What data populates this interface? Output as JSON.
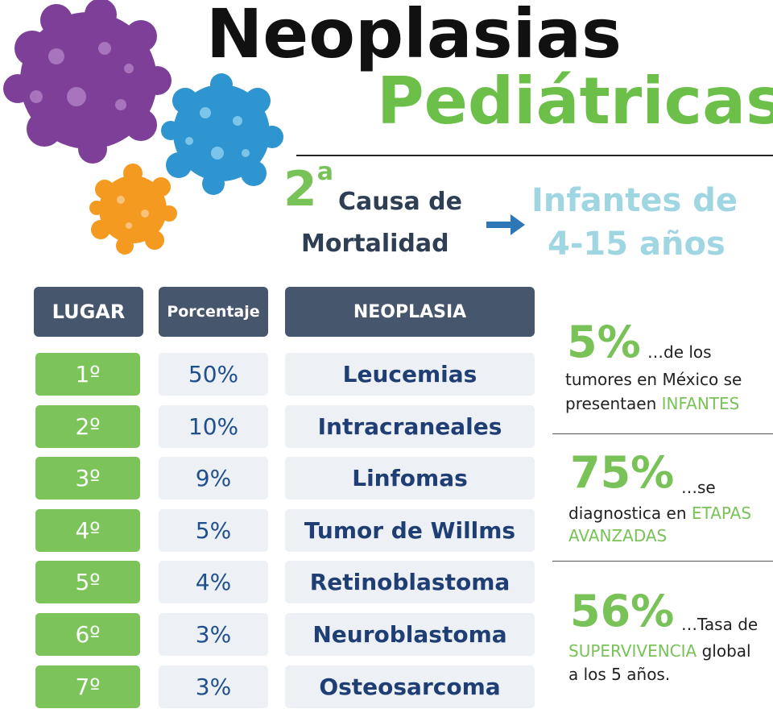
{
  "title": {
    "line1": "Neoplasias",
    "line2": "Pediátricas"
  },
  "cause": {
    "ordinal_num": "2",
    "ordinal_sup": "a",
    "line1": "Causa de",
    "line2": "Mortalidad",
    "target_line1": "Infantes de",
    "target_line2": "4-15 años"
  },
  "colors": {
    "green": "#78c257",
    "navy": "#46566c",
    "light_blue": "#9fd6e2"
  },
  "table": {
    "headers": [
      "LUGAR",
      "Porcentaje",
      "NEOPLASIA"
    ],
    "rows": [
      {
        "lugar": "1º",
        "pct": "50%",
        "neo": "Leucemias"
      },
      {
        "lugar": "2º",
        "pct": "10%",
        "neo": "Intracraneales"
      },
      {
        "lugar": "3º",
        "pct": "9%",
        "neo": "Linfomas"
      },
      {
        "lugar": "4º",
        "pct": "5%",
        "neo": "Tumor de Willms"
      },
      {
        "lugar": "5º",
        "pct": "4%",
        "neo": "Retinoblastoma"
      },
      {
        "lugar": "6º",
        "pct": "3%",
        "neo": "Neuroblastoma"
      },
      {
        "lugar": "7º",
        "pct": "3%",
        "neo": "Osteosarcoma"
      }
    ]
  },
  "stats": [
    {
      "value": "5%",
      "t1": "…de los",
      "t2": "tumores en México se",
      "t3a": "presentaen ",
      "t3b": "INFANTES"
    },
    {
      "value": "75%",
      "t1": "…se",
      "t2a": "diagnostica  en ",
      "t2b": "ETAPAS",
      "t3": "AVANZADAS"
    },
    {
      "value": "56%",
      "t1": "…Tasa de",
      "t2a": "SUPERVIVENCIA",
      "t2b": " global",
      "t3": "a los 5 años."
    }
  ]
}
